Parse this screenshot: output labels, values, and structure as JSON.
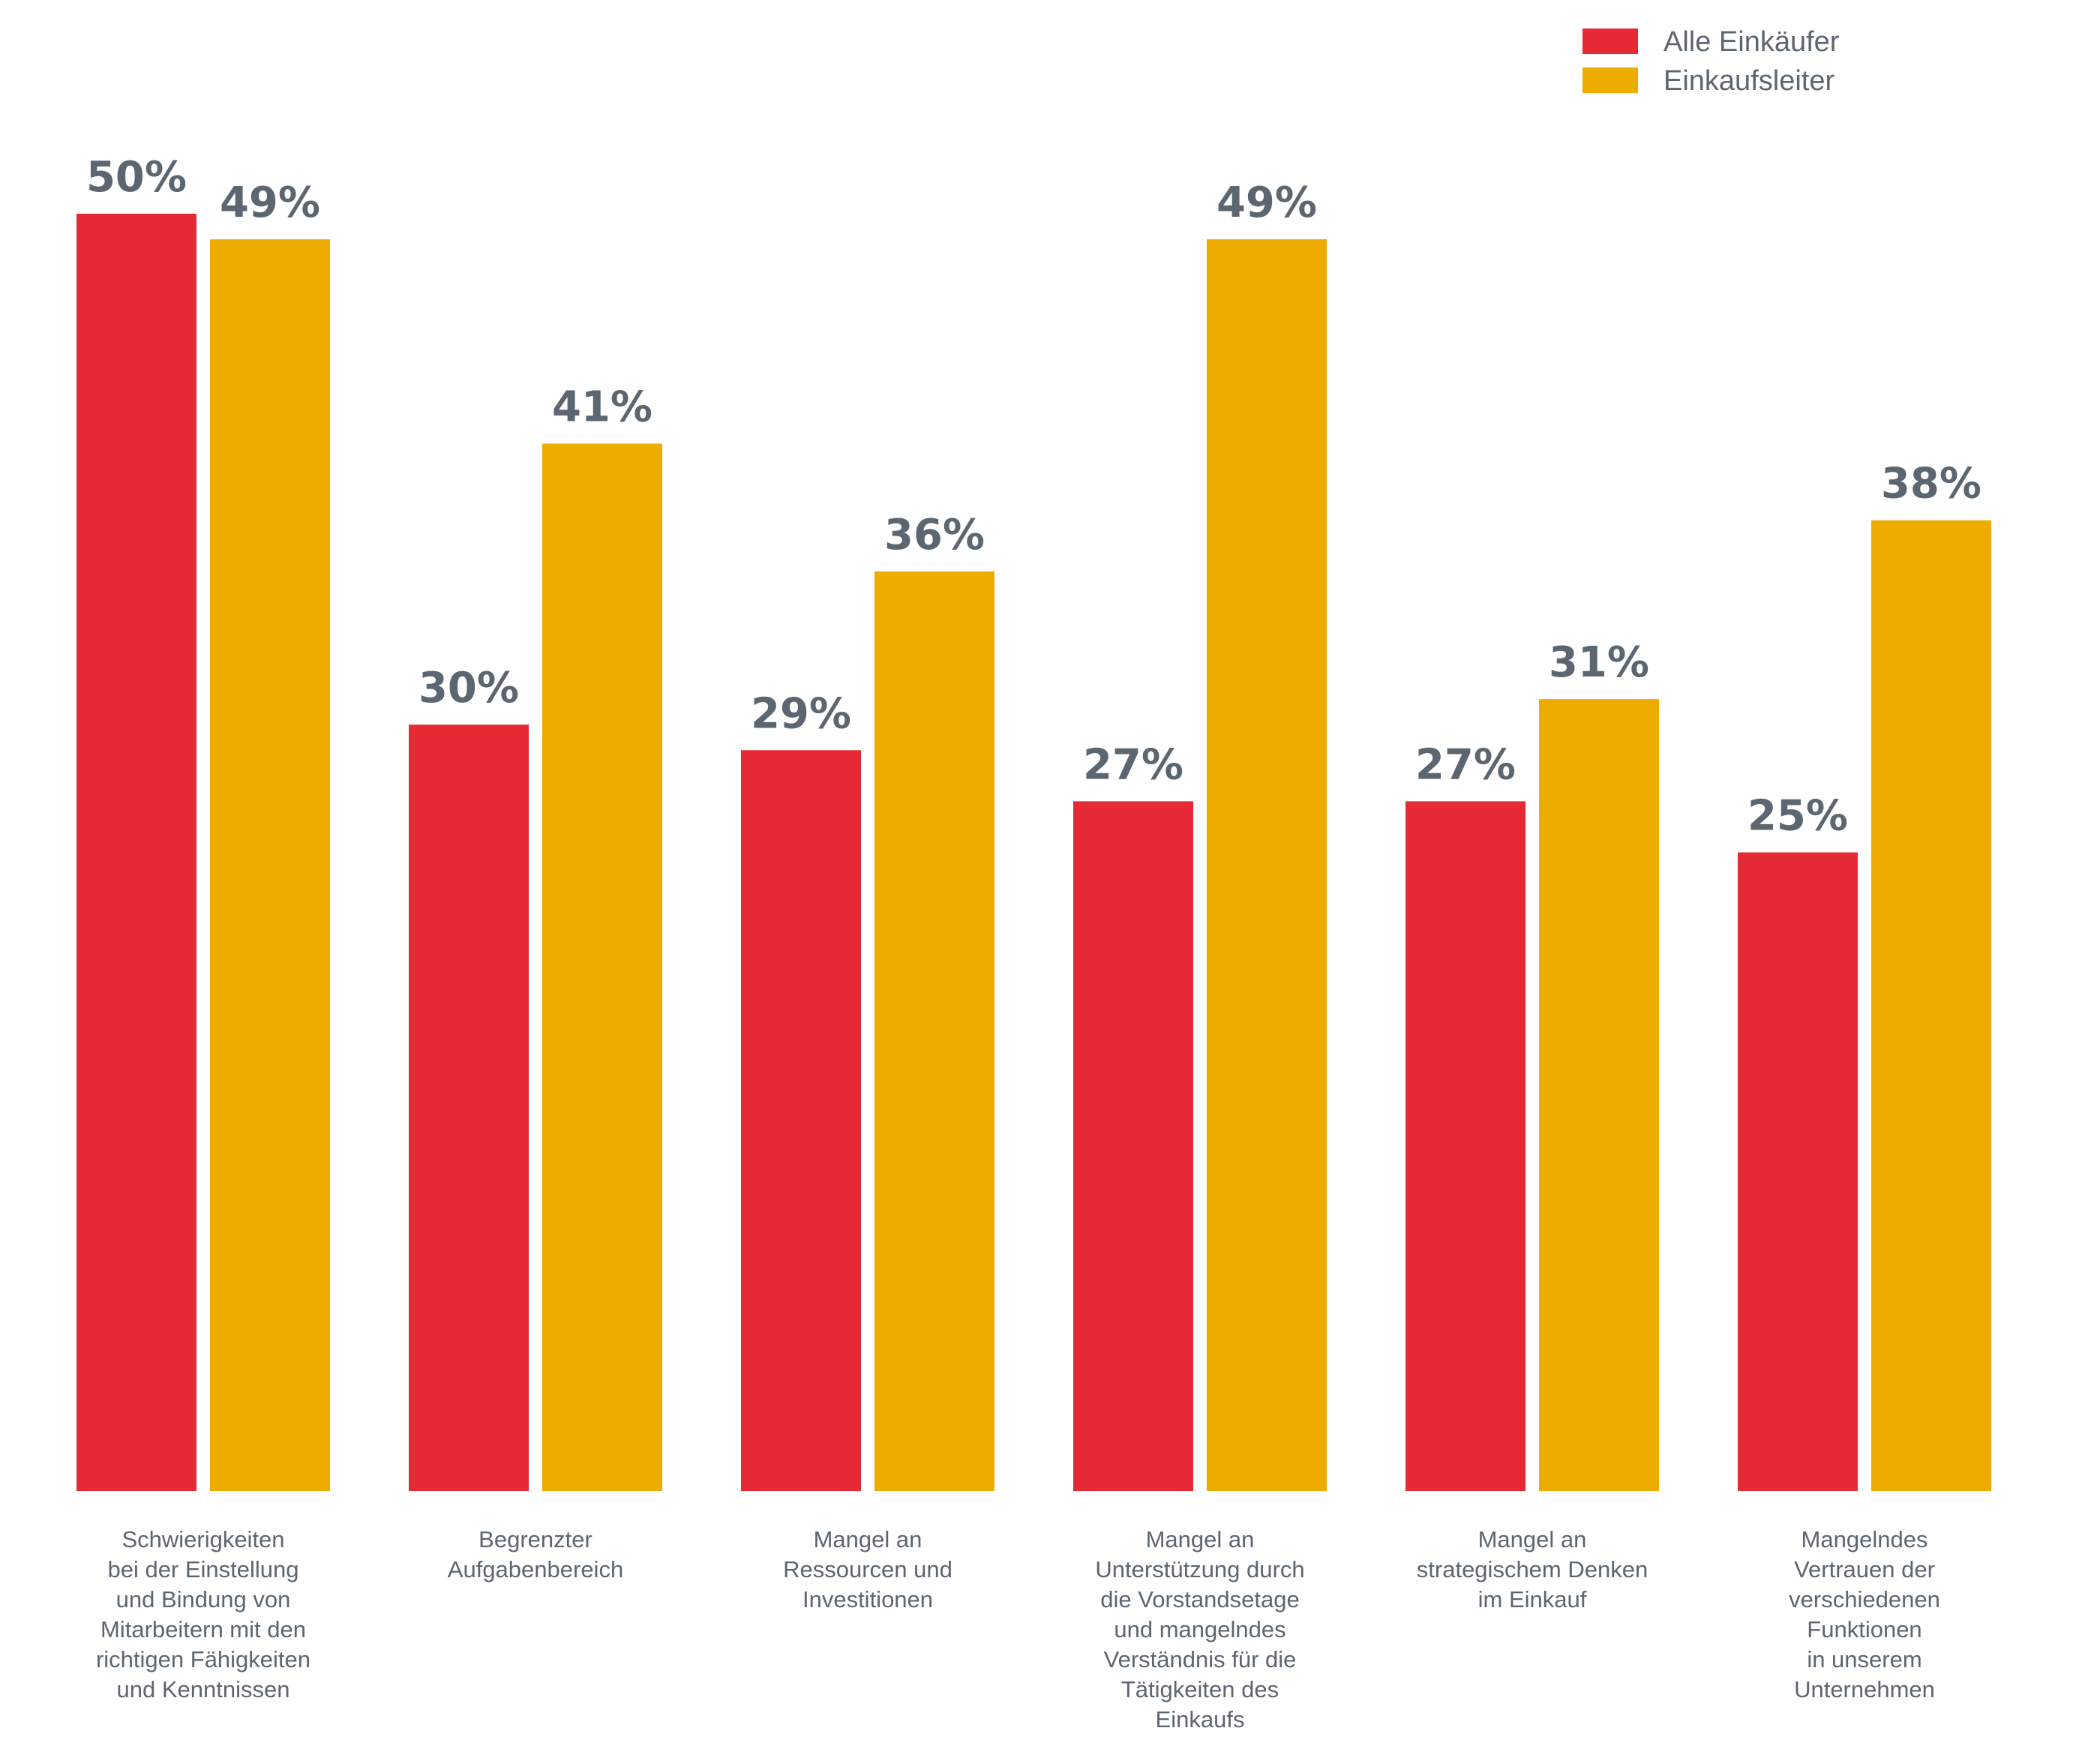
{
  "chart_data": {
    "type": "bar",
    "categories": [
      [
        "Schwierigkeiten",
        "bei der Einstellung",
        "und Bindung von",
        "Mitarbeitern mit den",
        "richtigen Fähigkeiten",
        "und Kenntnissen"
      ],
      [
        "Begrenzter",
        "Aufgabenbereich"
      ],
      [
        "Mangel an",
        "Ressourcen und",
        "Investitionen"
      ],
      [
        "Mangel an",
        "Unterstützung durch",
        "die Vorstandsetage",
        "und mangelndes",
        "Verständnis für die",
        "Tätigkeiten des",
        "Einkaufs"
      ],
      [
        "Mangel an",
        "strategischem Denken",
        "im Einkauf"
      ],
      [
        "Mangelndes",
        "Vertrauen der",
        "verschiedenen",
        "Funktionen",
        "in unserem",
        "Unternehmen"
      ]
    ],
    "series": [
      {
        "name": "Alle Einkäufer",
        "color": "#e52a35",
        "values": [
          50,
          30,
          29,
          27,
          27,
          25
        ]
      },
      {
        "name": "Einkaufsleiter",
        "color": "#eeab00",
        "values": [
          49,
          41,
          36,
          49,
          31,
          38
        ]
      }
    ],
    "value_suffix": "%",
    "ylim": [
      0,
      50
    ],
    "grid": false,
    "legend_position": "top-right",
    "title": "",
    "xlabel": "",
    "ylabel": ""
  }
}
